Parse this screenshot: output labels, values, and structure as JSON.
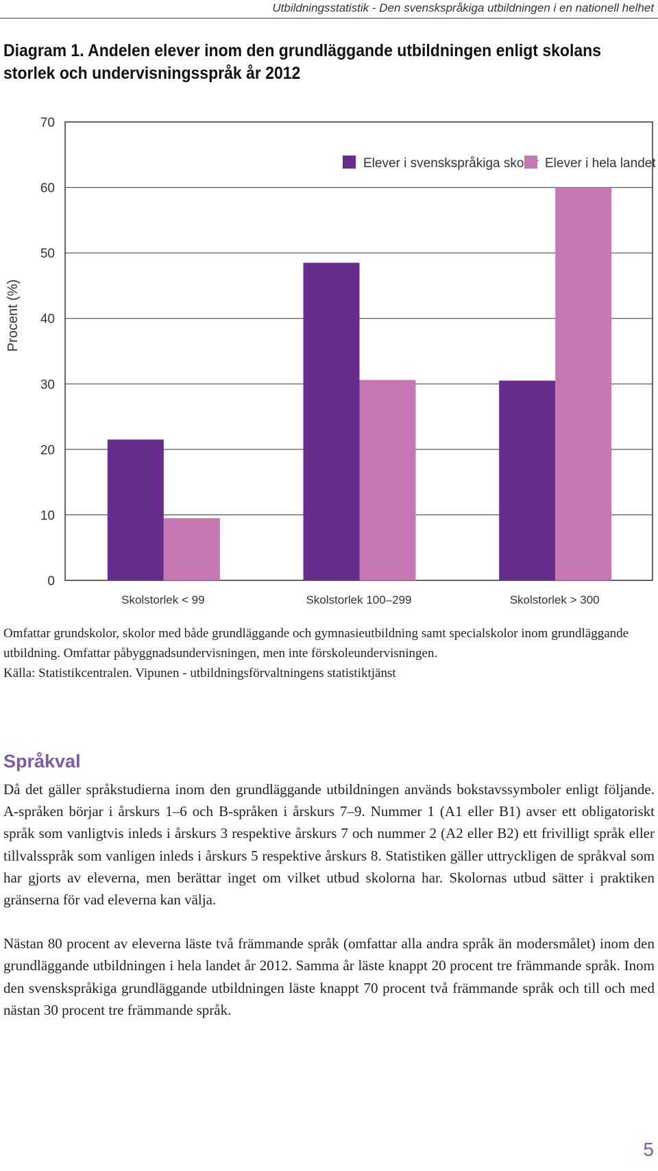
{
  "header": {
    "running_title": "Utbildningsstatistik - Den svenskspråkiga utbildningen i en nationell helhet"
  },
  "diagram": {
    "title": "Diagram 1. Andelen elever inom den grundläggande utbildningen enligt skolans storlek och undervisningsspråk år 2012"
  },
  "chart_data": {
    "type": "bar",
    "title": "",
    "xlabel": "",
    "ylabel": "Procent (%)",
    "ylim": [
      0,
      70
    ],
    "yticks": [
      0,
      10,
      20,
      30,
      40,
      50,
      60,
      70
    ],
    "grid": true,
    "legend_position": "top-right",
    "categories": [
      "Skolstorlek < 99",
      "Skolstorlek 100–299",
      "Skolstorlek > 300"
    ],
    "series": [
      {
        "name": "Elever i svenskspråkiga skolor",
        "color": "#662d8c",
        "values": [
          21.5,
          48.5,
          30.5
        ]
      },
      {
        "name": "Elever i hela landet",
        "color": "#c678b4",
        "values": [
          9.5,
          30.6,
          60
        ]
      }
    ]
  },
  "note": {
    "coverage": "Omfattar grundskolor, skolor med både grundläggande och gymnasieutbildning samt specialskolor inom grundläggande utbildning. Omfattar påbyggnadsundervisningen, men inte förskoleundervisningen.",
    "source": "Källa: Statistikcentralen. Vipunen - utbildningsförvaltningens statistiktjänst"
  },
  "section": {
    "heading": "Språkval",
    "paragraph1": "Då det gäller språkstudierna inom den grundläggande utbildningen används bokstavssymboler enligt följande. A-språken börjar i årskurs 1–6 och B-språken i årskurs 7–9. Nummer 1 (A1 eller B1) avser ett obligatoriskt språk som vanligtvis inleds i årskurs 3 respektive årskurs 7 och nummer 2 (A2 eller B2) ett frivilligt språk eller tillvalsspråk som vanligen inleds i årskurs 5 respektive årskurs 8. Statistiken gäller uttryckligen de språkval som har gjorts av eleverna, men berättar inget om vilket utbud skolorna har. Skolornas utbud sätter i praktiken gränserna för vad eleverna kan välja.",
    "paragraph2": "Nästan 80 procent av eleverna läste två främmande språk (omfattar alla andra språk än modersmålet) inom den grundläggande utbildningen i hela landet år 2012. Samma år läste knappt 20 procent tre främmande språk. Inom den svenskspråkiga grundläggande utbildningen läste knappt 70 procent två främmande språk och till och med nästan 30 procent tre främmande språk."
  },
  "page_number": "5"
}
